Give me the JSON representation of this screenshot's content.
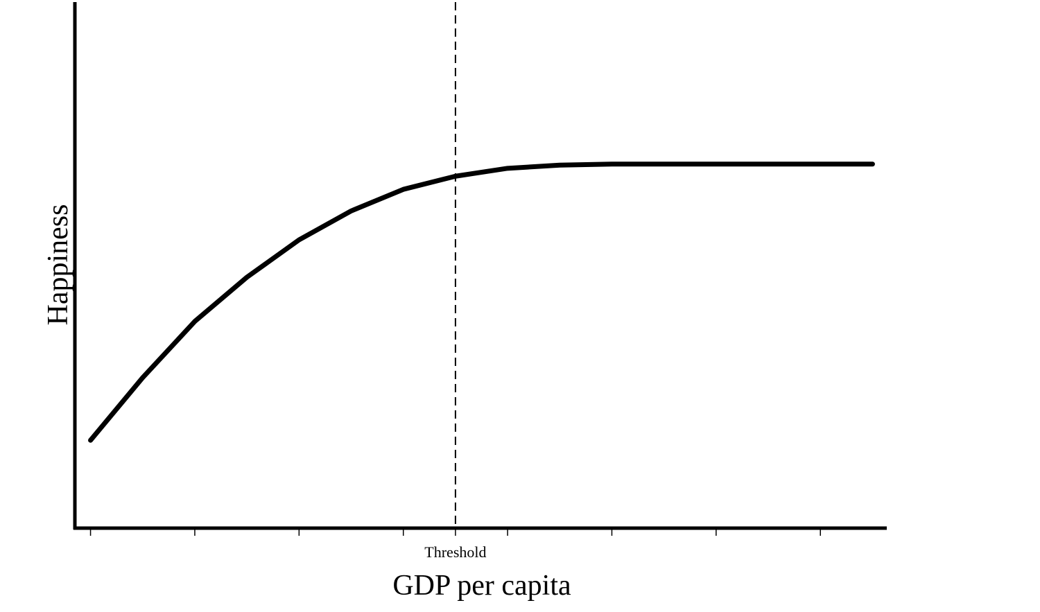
{
  "chart_data": {
    "type": "line",
    "x_label": "GDP per capita",
    "y_label": "Happiness",
    "x": [
      0,
      0.5,
      1,
      1.5,
      2,
      2.5,
      3,
      3.5,
      4,
      4.5,
      5,
      5.5,
      6,
      6.5,
      7,
      7.5
    ],
    "series": [
      {
        "color": "#000000",
        "values": [
          16.7,
          28.6,
          39.3,
          47.7,
          54.8,
          60.3,
          64.4,
          66.9,
          68.4,
          69.0,
          69.2,
          69.2,
          69.2,
          69.2,
          69.2,
          69.2
        ]
      }
    ],
    "xlim": [
      -0.15,
      7.63
    ],
    "ylim": [
      0,
      100
    ],
    "xticks": [
      {
        "value": 3.5,
        "label": "Threshold"
      }
    ],
    "minor_xticks": [
      0,
      1,
      2,
      3,
      4,
      5,
      6,
      7
    ],
    "threshold_line": true,
    "grid": false
  }
}
